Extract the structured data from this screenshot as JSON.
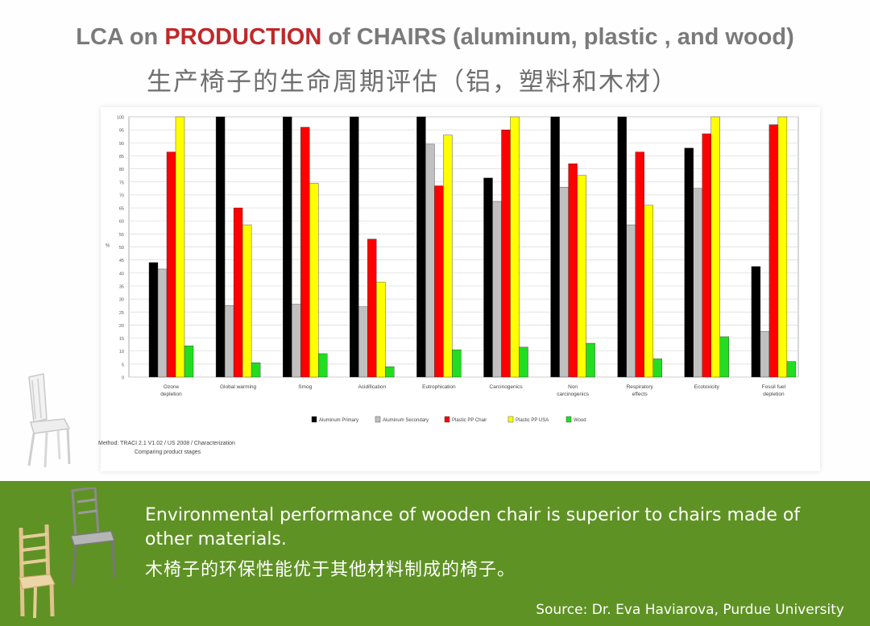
{
  "header": {
    "title_prefix": "LCA on ",
    "title_highlight": "PRODUCTION",
    "title_suffix": " of CHAIRS (aluminum,  plastic , and wood)",
    "subtitle_cn": "生产椅子的生命周期评估（铝，塑料和木材）"
  },
  "colors": {
    "highlight": "#c0282a",
    "green_band": "#5f9224"
  },
  "method_note": {
    "line1": "Method: TRACI 2.1 V1.02 / US 2008 / Characterization",
    "line2": "Comparing product stages"
  },
  "chart_data": {
    "type": "bar",
    "ylabel": "%",
    "ylim": [
      0,
      100
    ],
    "yticks": [
      0,
      5,
      10,
      15,
      20,
      25,
      30,
      35,
      40,
      45,
      50,
      55,
      60,
      65,
      70,
      75,
      80,
      85,
      90,
      95,
      100
    ],
    "grid": true,
    "legend_position": "bottom",
    "categories": [
      "Ozone depletion",
      "Global warming",
      "Smog",
      "Acidification",
      "Eutrophication",
      "Carcinogenics",
      "Non carcinogenics",
      "Respiratory effects",
      "Ecotoxicity",
      "Fossil fuel depletion"
    ],
    "series": [
      {
        "name": "Aluminum Primary",
        "color": "#000000",
        "values": [
          44,
          100,
          100,
          100,
          100,
          76.5,
          100,
          100,
          88,
          42.5
        ]
      },
      {
        "name": "Aluminum Secondary",
        "color": "#c0c0c0",
        "values": [
          41.5,
          27.5,
          28,
          27,
          89.5,
          67.5,
          73,
          58.5,
          72.5,
          17.5
        ]
      },
      {
        "name": "Plastic PP Chair",
        "color": "#ff0000",
        "values": [
          86.5,
          65,
          96,
          53,
          73.5,
          95,
          82,
          86.5,
          93.5,
          97
        ]
      },
      {
        "name": "Plastic PP USA",
        "color": "#ffff00",
        "values": [
          100,
          58.5,
          74.5,
          36.5,
          93,
          100,
          77.5,
          66,
          100,
          100
        ]
      },
      {
        "name": "Wood",
        "color": "#22dd22",
        "values": [
          12,
          5.5,
          9,
          4,
          10.5,
          11.5,
          13,
          7,
          15.5,
          6
        ]
      }
    ]
  },
  "statement": {
    "en": "Environmental performance of wooden chair is superior to chairs made of other materials.",
    "cn": "木椅子的环保性能优于其他材料制成的椅子。"
  },
  "source": "Source: Dr. Eva Haviarova, Purdue University"
}
